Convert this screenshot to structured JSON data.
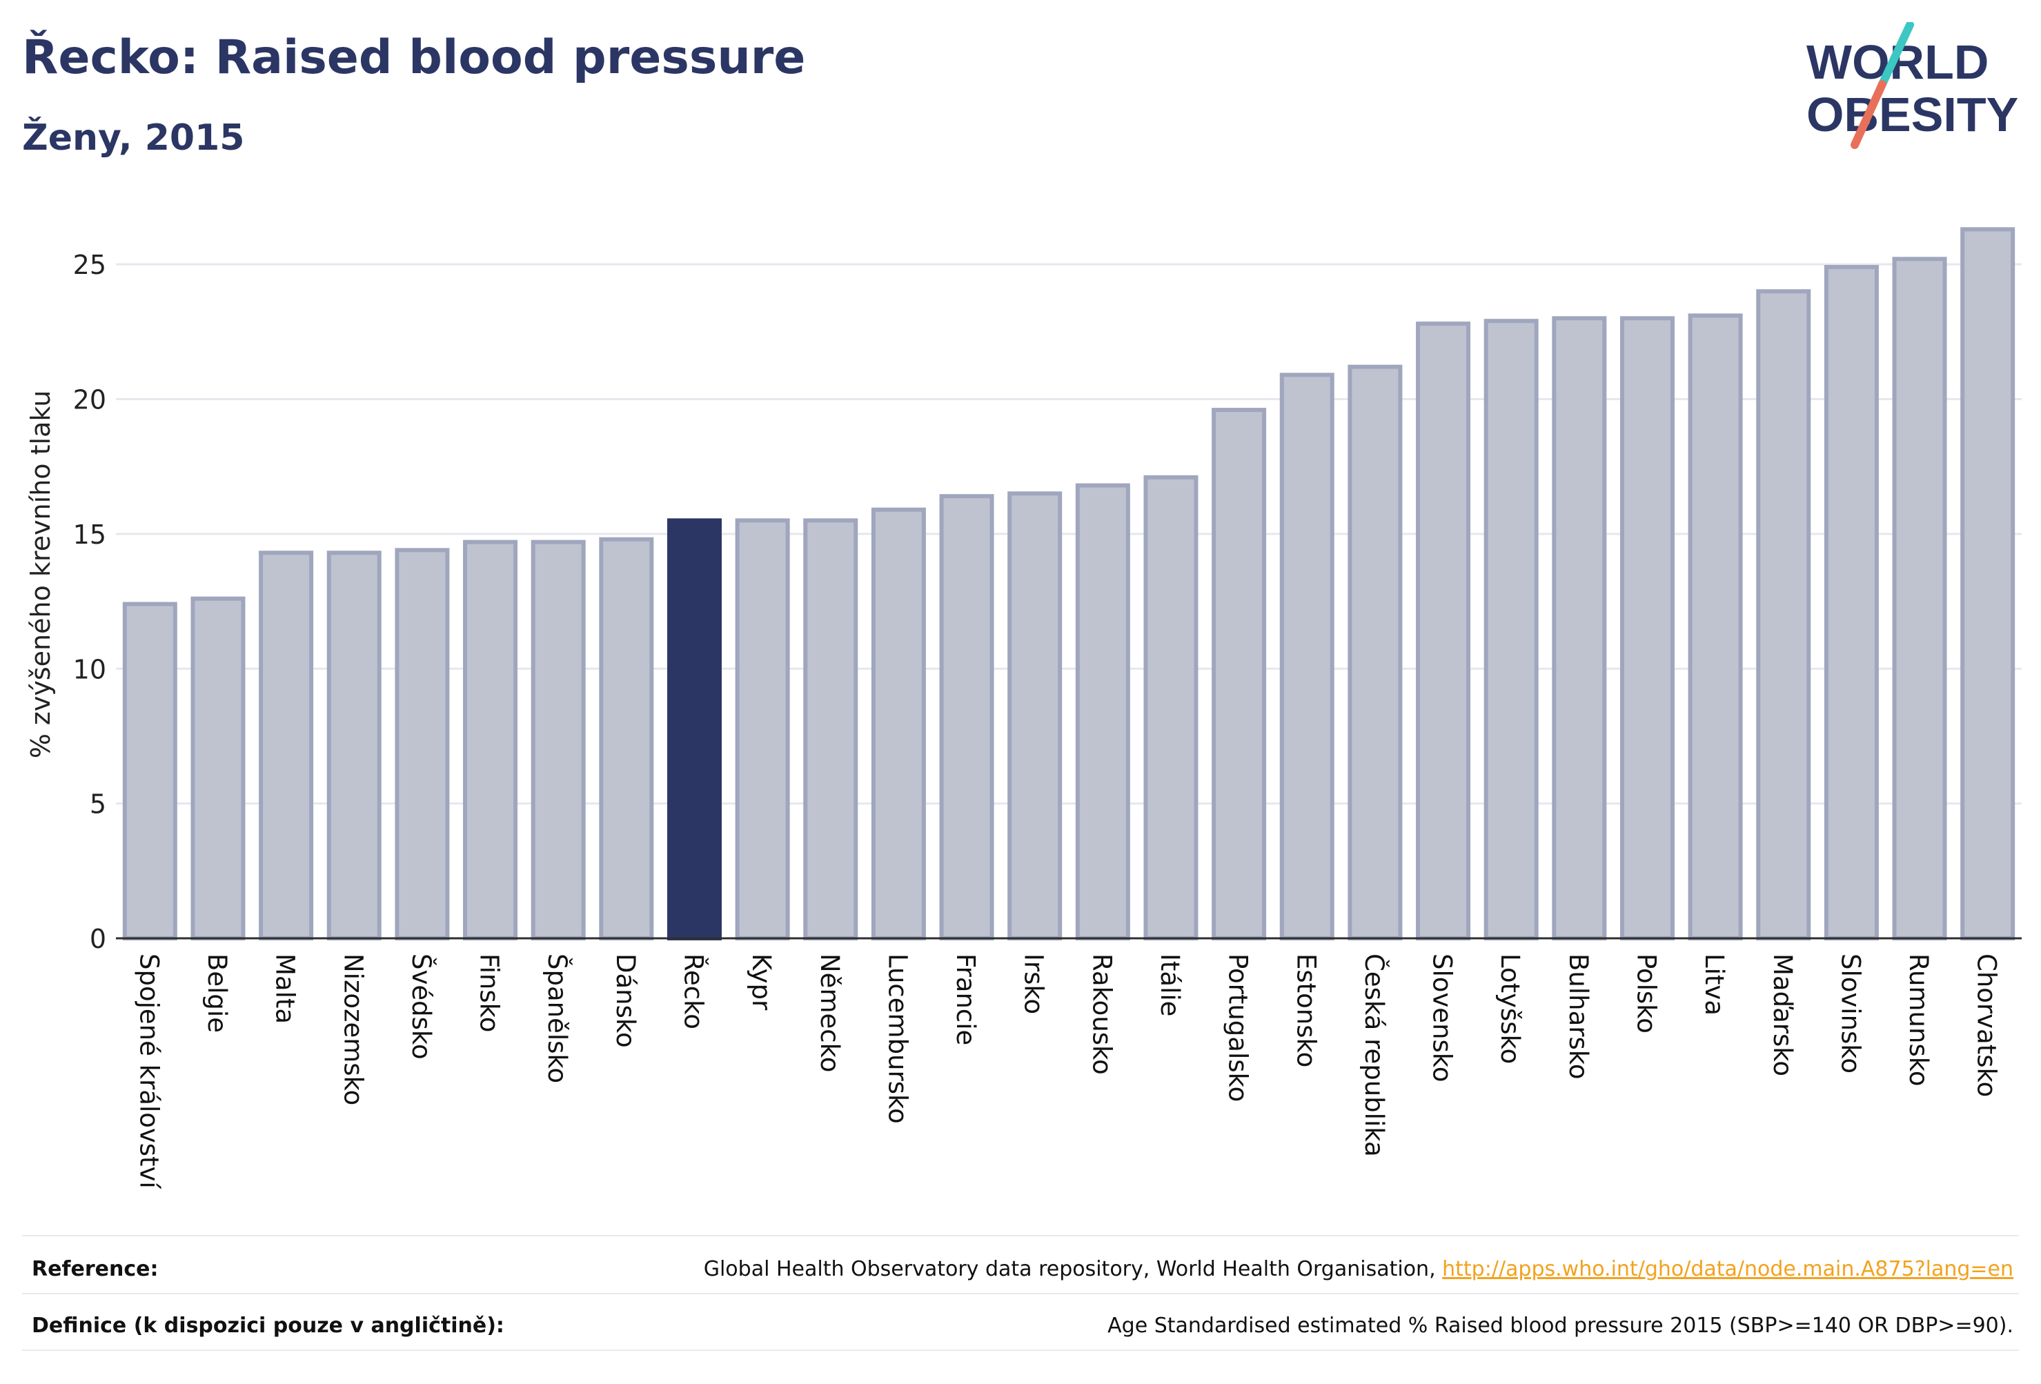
{
  "header": {
    "title": "Řecko: Raised blood pressure",
    "subtitle": "Ženy, 2015"
  },
  "logo": {
    "line1": "WORLD",
    "line2": "OBESITY",
    "accent_colors": [
      "#3cc7c3",
      "#e8705a"
    ],
    "text_color": "#2b3664"
  },
  "colors": {
    "bar": "#bfc3d0",
    "bar_border": "#9fa6bd",
    "highlight": "#2b3664",
    "grid": "#e6e8ee",
    "axis": "#2f2f2f"
  },
  "chart_data": {
    "type": "bar",
    "ylabel": "% zvýšeného krevního tlaku",
    "ylim": [
      0,
      27
    ],
    "yticks": [
      0,
      5,
      10,
      15,
      20,
      25
    ],
    "grid": true,
    "highlight": "Řecko",
    "categories": [
      "Spojené království",
      "Belgie",
      "Malta",
      "Nizozemsko",
      "Švédsko",
      "Finsko",
      "Španělsko",
      "Dánsko",
      "Řecko",
      "Kypr",
      "Německo",
      "Lucembursko",
      "Francie",
      "Irsko",
      "Rakousko",
      "Itálie",
      "Portugalsko",
      "Estonsko",
      "Česká republika",
      "Slovensko",
      "Lotyšsko",
      "Bulharsko",
      "Polsko",
      "Litva",
      "Maďarsko",
      "Slovinsko",
      "Rumunsko",
      "Chorvatsko"
    ],
    "values": [
      12.4,
      12.6,
      14.3,
      14.3,
      14.4,
      14.7,
      14.7,
      14.8,
      15.5,
      15.5,
      15.5,
      15.9,
      16.4,
      16.5,
      16.8,
      17.1,
      19.6,
      20.9,
      21.2,
      22.8,
      22.9,
      23.0,
      23.0,
      23.1,
      24.0,
      24.9,
      25.2,
      26.3
    ]
  },
  "footer": {
    "reference_label": "Reference:",
    "reference_text": "Global Health Observatory data repository, World Health Organisation, ",
    "reference_link": "http://apps.who.int/gho/data/node.main.A875?lang=en",
    "definition_label": "Definice (k dispozici pouze v angličtině):",
    "definition_text": "Age Standardised estimated % Raised blood pressure 2015 (SBP>=140 OR DBP>=90)."
  }
}
